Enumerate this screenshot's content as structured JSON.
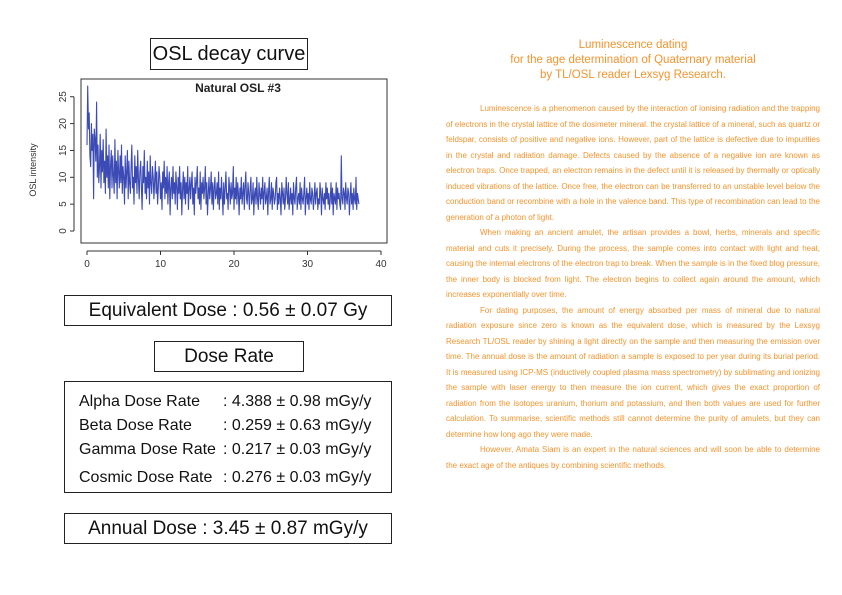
{
  "header": {
    "title": "OSL decay curve"
  },
  "chart_data": {
    "type": "line",
    "title": "Natural OSL #3",
    "xlabel": "",
    "ylabel": "OSL intensity",
    "xlim": [
      0,
      40
    ],
    "ylim": [
      0,
      27
    ],
    "x_ticks": [
      0,
      10,
      20,
      30,
      40
    ],
    "y_ticks": [
      0,
      5,
      10,
      15,
      20,
      25
    ],
    "grid": false,
    "line_color": "#3b4ab4",
    "series": [
      {
        "name": "",
        "x_start": 0,
        "x_step": 0.1,
        "values": [
          16,
          27,
          19,
          22,
          14,
          12,
          20,
          15,
          18,
          6,
          19,
          17,
          13,
          24,
          10,
          16,
          9,
          12,
          18,
          8,
          15,
          11,
          17,
          9,
          13,
          7,
          19,
          10,
          14,
          8,
          16,
          6,
          12,
          15,
          8,
          14,
          10,
          7,
          17,
          9,
          13,
          6,
          15,
          11,
          8,
          14,
          9,
          16,
          7,
          12,
          10,
          5,
          14,
          8,
          11,
          15,
          6,
          13,
          9,
          7,
          12,
          16,
          8,
          10,
          5,
          14,
          9,
          12,
          7,
          15,
          10,
          6,
          11,
          13,
          8,
          4,
          12,
          9,
          15,
          7,
          10,
          6,
          13,
          8,
          11,
          5,
          14,
          9,
          7,
          12,
          10,
          6,
          9,
          13,
          7,
          11,
          5,
          8,
          12,
          10,
          6,
          9,
          4,
          11,
          8,
          13,
          6,
          10,
          7,
          12,
          5,
          9,
          11,
          3,
          8,
          10,
          6,
          12,
          7,
          9,
          5,
          11,
          8,
          4,
          10,
          7,
          12,
          6,
          9,
          3,
          8,
          11,
          6,
          10,
          5,
          9,
          7,
          12,
          4,
          8,
          10,
          6,
          9,
          11,
          5,
          8,
          3,
          10,
          7,
          9,
          12,
          6,
          8,
          5,
          11,
          4,
          9,
          7,
          10,
          6,
          8,
          12,
          5,
          9,
          3,
          7,
          10,
          6,
          8,
          11,
          5,
          9,
          4,
          8,
          10,
          6,
          7,
          9,
          5,
          11,
          4,
          8,
          6,
          10,
          7,
          3,
          9,
          5,
          8,
          11,
          6,
          7,
          4,
          10,
          8,
          5,
          9,
          6,
          7,
          12,
          4,
          8,
          6,
          10,
          5,
          9,
          7,
          3,
          8,
          6,
          10,
          5,
          7,
          9,
          4,
          8,
          11,
          6,
          5,
          9,
          7,
          4,
          8,
          10,
          5,
          6,
          9,
          3,
          7,
          8,
          5,
          10,
          6,
          4,
          9,
          7,
          5,
          8,
          6,
          10,
          4,
          7,
          9,
          5,
          6,
          8,
          3,
          7,
          10,
          5,
          6,
          9,
          4,
          8,
          7,
          5,
          6,
          9,
          10,
          4,
          7,
          5,
          8,
          6,
          3,
          9,
          7,
          5,
          8,
          4,
          6,
          10,
          7,
          5,
          9,
          4,
          6,
          8,
          5,
          7,
          3,
          9,
          6,
          5,
          8,
          10,
          4,
          6,
          7,
          5,
          9,
          4,
          8,
          6,
          5,
          7,
          10,
          3,
          6,
          8,
          5,
          7,
          4,
          9,
          6,
          5,
          8,
          7,
          4,
          6,
          9,
          5,
          7,
          8,
          4,
          6,
          5,
          9,
          7,
          3,
          8,
          6,
          5,
          7,
          4,
          9,
          6,
          8,
          5,
          7,
          4,
          6,
          9,
          5,
          8,
          3,
          7,
          6,
          5,
          9,
          4,
          8,
          6,
          7,
          5,
          4,
          14,
          6,
          5,
          8,
          7,
          4,
          9,
          6,
          5,
          8,
          7,
          3,
          6,
          9,
          5,
          7,
          4,
          8,
          6,
          5,
          10,
          4,
          7,
          6,
          5
        ]
      }
    ]
  },
  "equivalent_dose": "Equivalent Dose : 0.56 ± 0.07 Gy",
  "dose_rate": {
    "title": "Dose Rate",
    "rows": [
      {
        "name": "Alpha Dose Rate",
        "value": ": 4.388 ± 0.98 mGy/y"
      },
      {
        "name": "Beta Dose Rate",
        "value": ": 0.259 ± 0.63 mGy/y"
      },
      {
        "name": "Gamma Dose Rate",
        "value": ": 0.217 ± 0.03 mGy/y"
      },
      {
        "name": "Cosmic Dose Rate",
        "value": ": 0.276 ± 0.03 mGy/y"
      }
    ]
  },
  "annual_dose": "Annual Dose : 3.45 ± 0.87 mGy/y",
  "article": {
    "title_lines": [
      "Luminescence dating",
      "for the age determination of Quaternary material",
      "by TL/OSL reader Lexsyg Research."
    ],
    "paragraphs": [
      "Luminescence is a phenomenon caused by the interaction of ionising radiation and the trapping of electrons in the crystal lattice of the dosimeter mineral. the crystal lattice of a mineral, such as quartz or feldspar, consists of positive and negative ions. However, part of the lattice is defective due to impurities in the crystal and radiation damage. Defects caused by the absence of a negative ion are known as electron traps. Once trapped, an electron remains in the defect until it is released by thermally or optically induced vibrations of the lattice. Once free, the electron can be transferred to an unstable level below the conduction band or recombine with a hole in the valence band. This type of recombination can lead to the generation of a photon of light.",
      "When making an ancient amulet, the artisan provides a bowl, herbs, minerals and specific material and cuts it precisely. During the process, the sample comes into contact with light and heat, causing the internal electrons of the electron trap to break. When the sample is in the fixed blog pressure, the inner body is blocked from light. The electron begins to collect again around the amount, which increases exponentially over time.",
      "For dating purposes, the amount of energy absorbed per mass of mineral due to natural radiation exposure since zero is known as the equivalent dose, which is measured by the Lexsyg Research TL/OSL reader by shining a light directly on the sample and then measuring the emission over time. The annual dose is the amount of radiation a sample is exposed to per year during its burial period. It is measured using ICP-MS (inductively coupled plasma mass spectrometry) by sublimating and ionizing the sample with laser energy to then measure the ion current, which gives the exact proportion of radiation from the isotopes uranium, thorium and potassium, and then both values are used for further calculation. To summarise, scientific methods still cannot determine the purity of amulets, but they can determine how long ago they were made.",
      "However, Amata Siam is an expert in the natural sciences and will soon be able to determine the exact age of the antiques by combining scientific methods."
    ]
  }
}
